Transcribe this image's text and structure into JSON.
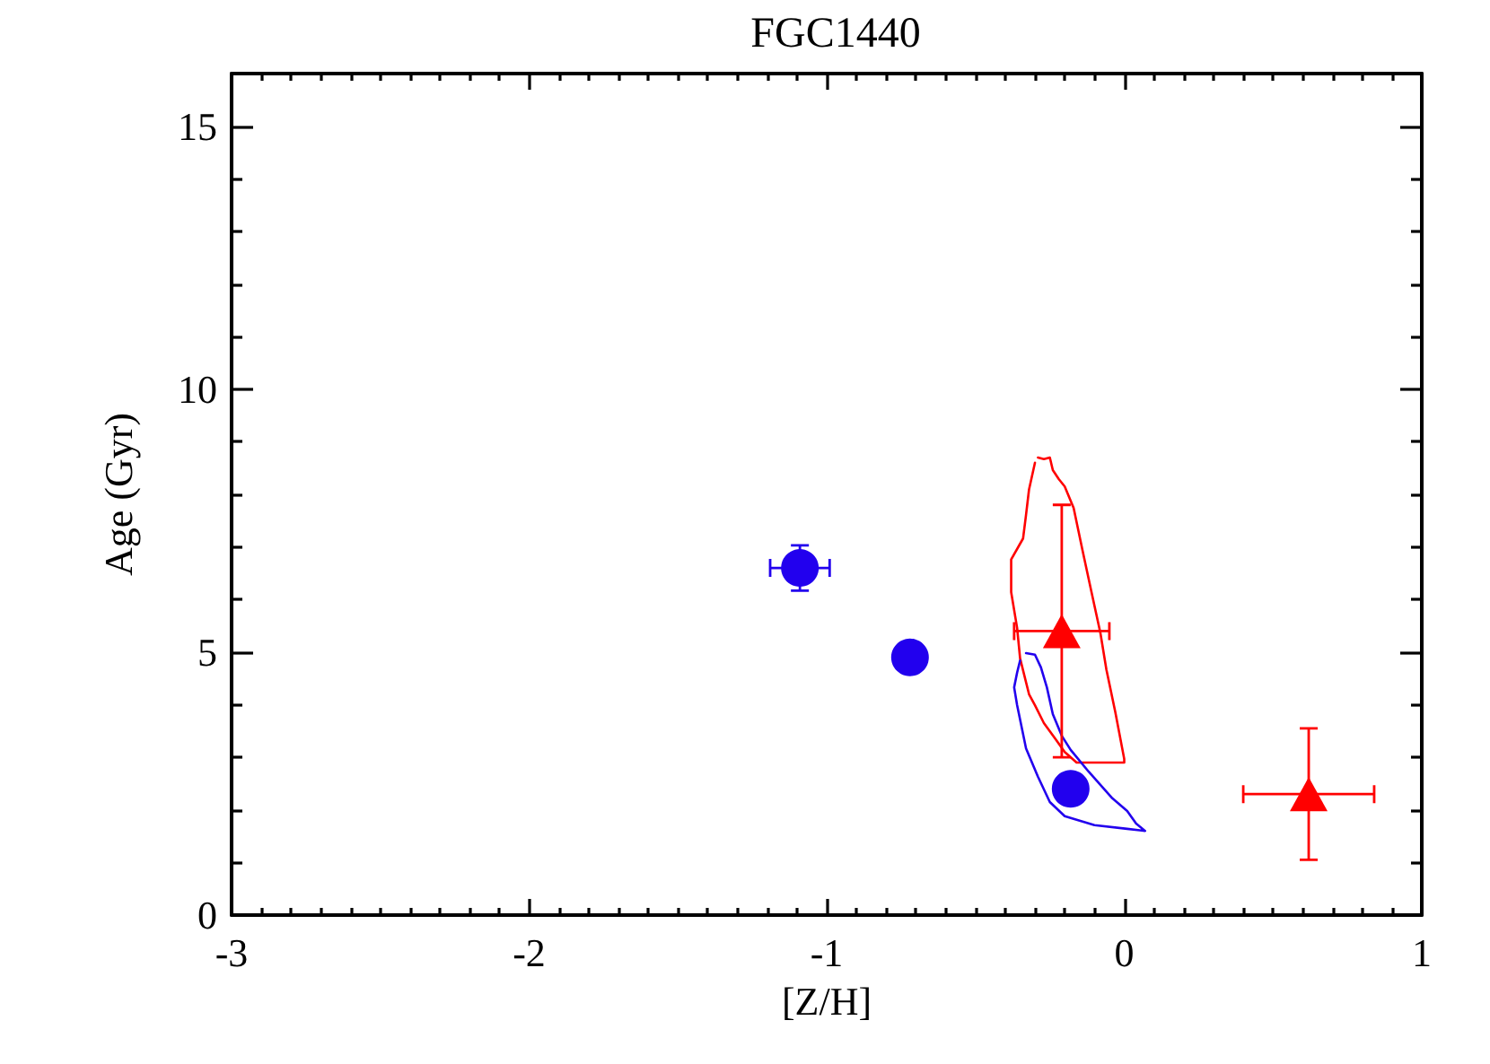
{
  "chart_data": {
    "type": "scatter",
    "title": "FGC1440",
    "xlabel": "[Z/H]",
    "ylabel": "Age (Gyr)",
    "xlim": [
      -3,
      1
    ],
    "ylim": [
      0,
      16
    ],
    "xticks": [
      -3,
      {
        "value": -2.9,
        "label": null
      },
      {
        "value": -2.8,
        "label": null
      },
      {
        "value": -2.7,
        "label": null
      },
      {
        "value": -2.6,
        "label": null
      },
      {
        "value": -2.5,
        "label": null
      },
      {
        "value": -2.4,
        "label": null
      },
      {
        "value": -2.3,
        "label": null
      },
      {
        "value": -2.2,
        "label": null
      },
      {
        "value": -2.1,
        "label": null
      },
      -2,
      {
        "value": -1.9,
        "label": null
      },
      {
        "value": -1.8,
        "label": null
      },
      {
        "value": -1.7,
        "label": null
      },
      {
        "value": -1.6,
        "label": null
      },
      {
        "value": -1.5,
        "label": null
      },
      {
        "value": -1.4,
        "label": null
      },
      {
        "value": -1.3,
        "label": null
      },
      {
        "value": -1.2,
        "label": null
      },
      {
        "value": -1.1,
        "label": null
      },
      -1,
      {
        "value": -0.9,
        "label": null
      },
      {
        "value": -0.8,
        "label": null
      },
      {
        "value": -0.7,
        "label": null
      },
      {
        "value": -0.6,
        "label": null
      },
      {
        "value": -0.5,
        "label": null
      },
      {
        "value": -0.4,
        "label": null
      },
      {
        "value": -0.3,
        "label": null
      },
      {
        "value": -0.2,
        "label": null
      },
      {
        "value": -0.1,
        "label": null
      },
      0,
      {
        "value": 0.1,
        "label": null
      },
      {
        "value": 0.2,
        "label": null
      },
      {
        "value": 0.3,
        "label": null
      },
      {
        "value": 0.4,
        "label": null
      },
      {
        "value": 0.5,
        "label": null
      },
      {
        "value": 0.6,
        "label": null
      },
      {
        "value": 0.7,
        "label": null
      },
      {
        "value": 0.8,
        "label": null
      },
      {
        "value": 0.9,
        "label": null
      },
      1
    ],
    "yticks": [
      0,
      {
        "value": 1,
        "label": null
      },
      {
        "value": 2,
        "label": null
      },
      {
        "value": 3,
        "label": null
      },
      {
        "value": 4,
        "label": null
      },
      5,
      {
        "value": 6,
        "label": null
      },
      {
        "value": 7,
        "label": null
      },
      {
        "value": 8,
        "label": null
      },
      {
        "value": 9,
        "label": null
      },
      10,
      {
        "value": 11,
        "label": null
      },
      {
        "value": 12,
        "label": null
      },
      {
        "value": 13,
        "label": null
      },
      {
        "value": 14,
        "label": null
      },
      15
    ],
    "series": [
      {
        "color": "#2200ee",
        "marker": "circle",
        "x": [
          -1.09,
          -0.72,
          -0.18
        ],
        "values": [
          6.6,
          4.9,
          2.4
        ],
        "errors": [
          0.43,
          null,
          null
        ],
        "xerrors": [
          0.1,
          null,
          null
        ]
      },
      {
        "color": "#ff0000",
        "marker": "triangle",
        "x": [
          -0.21,
          0.62
        ],
        "values": [
          5.4,
          2.3
        ],
        "errors": [
          2.4,
          1.25
        ],
        "xerrors": [
          0.16,
          0.22
        ]
      },
      {
        "type": "line",
        "color": "#ff0000",
        "marker": "none",
        "x": [
          -0.29,
          -0.27,
          -0.25,
          -0.24,
          -0.22,
          -0.2,
          -0.17,
          -0.14,
          -0.11,
          -0.08,
          -0.06,
          -0.03,
          0,
          0,
          -0.16,
          -0.2,
          -0.23,
          -0.27,
          -0.3,
          -0.32,
          -0.35,
          -0.36,
          -0.38,
          -0.38,
          -0.34,
          -0.33,
          -0.32,
          -0.3
        ],
        "values": [
          8.7,
          8.67,
          8.7,
          8.46,
          8.29,
          8.15,
          7.74,
          6.93,
          6.14,
          5.36,
          4.67,
          3.86,
          2.97,
          2.9,
          2.9,
          3.1,
          3.34,
          3.65,
          3.99,
          4.2,
          4.88,
          5.46,
          6.14,
          6.76,
          7.16,
          7.61,
          8.09,
          8.6
        ]
      },
      {
        "type": "line",
        "color": "#2200ee",
        "marker": "none",
        "x": [
          -0.33,
          -0.3,
          -0.28,
          -0.26,
          -0.24,
          -0.21,
          -0.18,
          -0.12,
          -0.04,
          0.01,
          0.04,
          0.07,
          0.01,
          -0.1,
          -0.2,
          -0.25,
          -0.29,
          -0.33,
          -0.36,
          -0.37,
          -0.36,
          -0.35
        ],
        "values": [
          4.98,
          4.95,
          4.71,
          4.33,
          3.82,
          3.41,
          3.14,
          2.73,
          2.22,
          1.98,
          1.74,
          1.6,
          1.64,
          1.71,
          1.88,
          2.15,
          2.63,
          3.17,
          3.99,
          4.33,
          4.61,
          4.84
        ]
      }
    ]
  }
}
